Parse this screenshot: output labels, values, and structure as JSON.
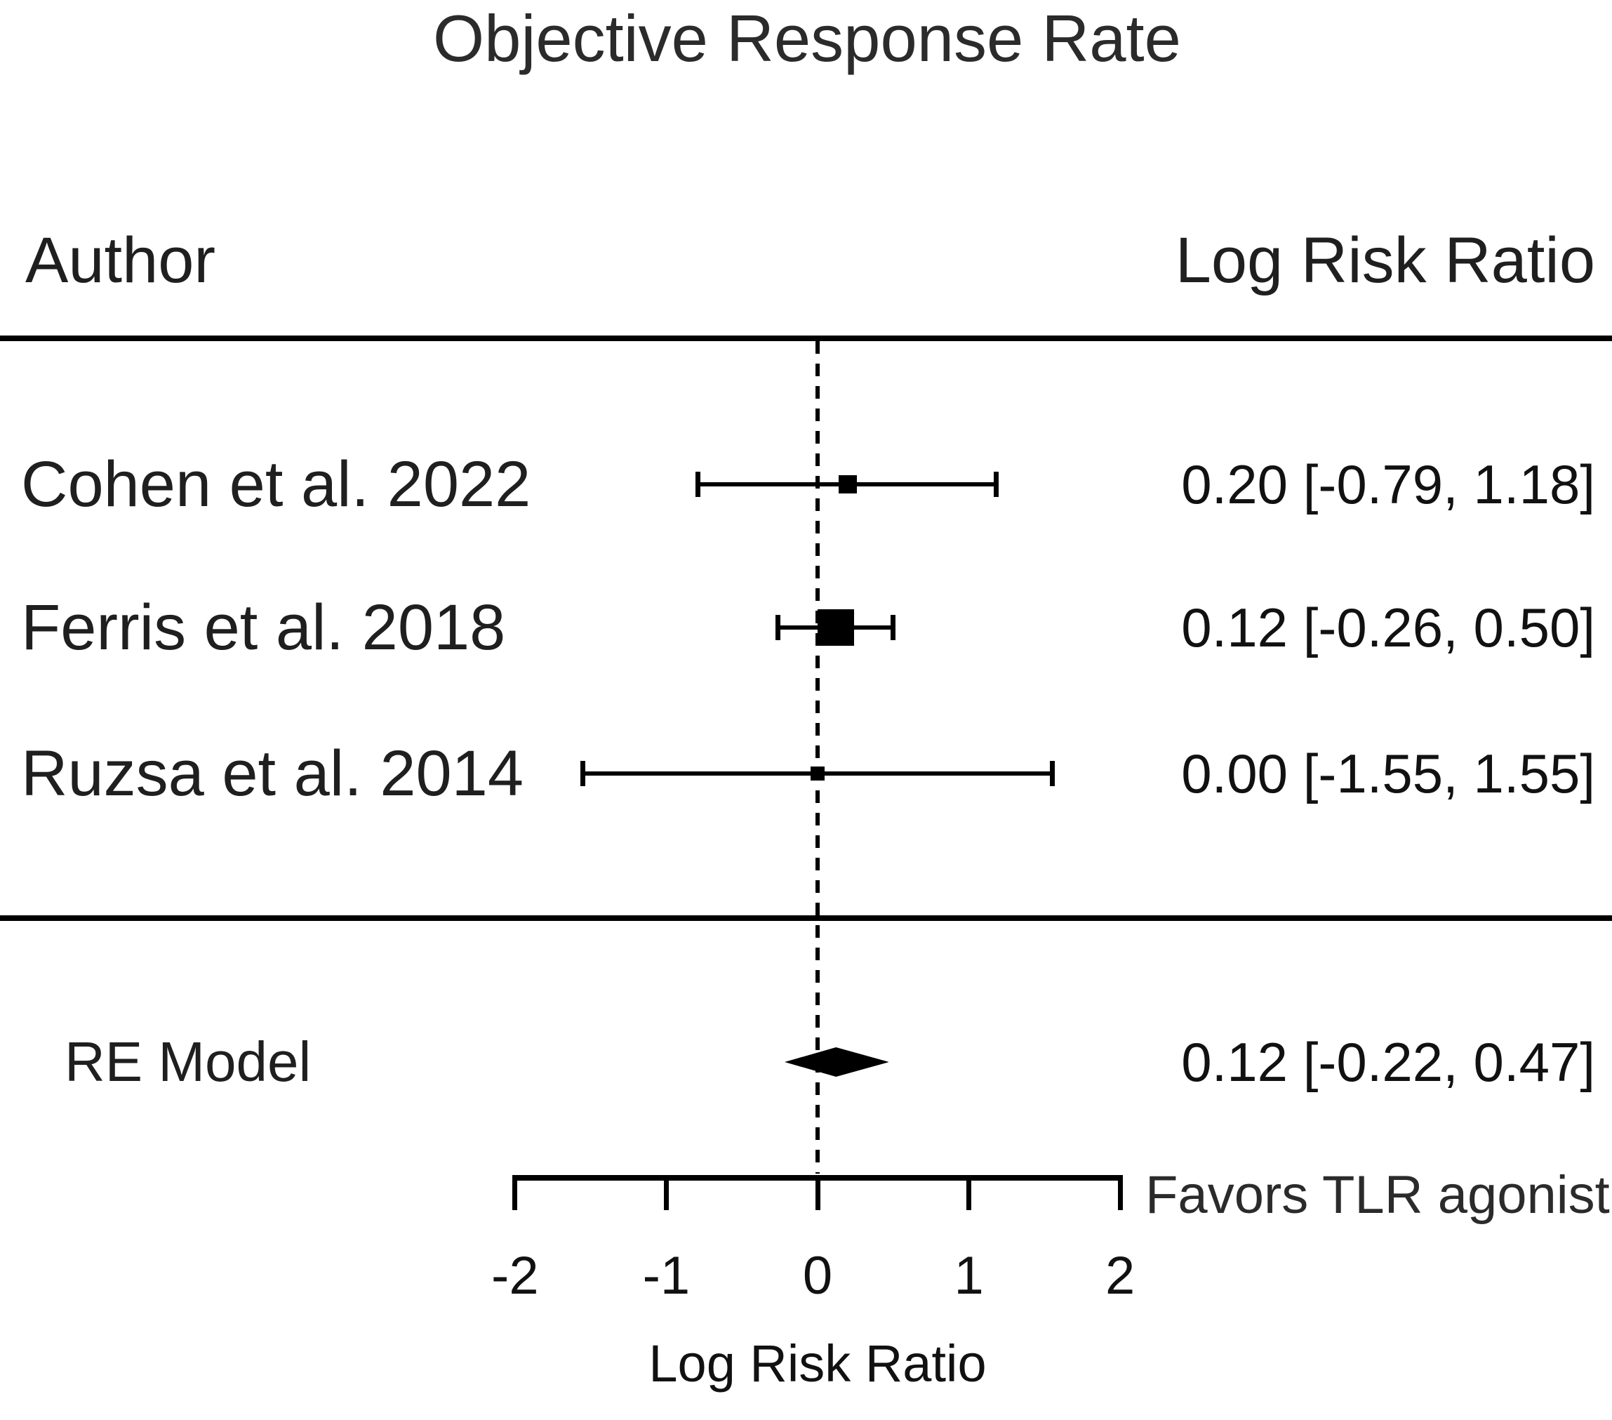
{
  "title": "Objective Response Rate",
  "columns": {
    "author": "Author",
    "effect": "Log Risk Ratio"
  },
  "chart_data": {
    "type": "forest",
    "effect_measure": "Log Risk Ratio",
    "studies": [
      {
        "author": "Cohen et al. 2022",
        "estimate": 0.2,
        "ci_lower": -0.79,
        "ci_upper": 1.18,
        "label": "0.20 [-0.79, 1.18]",
        "marker_px": 26
      },
      {
        "author": "Ferris et al. 2018",
        "estimate": 0.12,
        "ci_lower": -0.26,
        "ci_upper": 0.5,
        "label": "0.12 [-0.26, 0.50]",
        "marker_px": 52
      },
      {
        "author": "Ruzsa et al. 2014",
        "estimate": 0.0,
        "ci_lower": -1.55,
        "ci_upper": 1.55,
        "label": "0.00 [-1.55, 1.55]",
        "marker_px": 20
      }
    ],
    "summary": {
      "name": "RE Model",
      "estimate": 0.12,
      "ci_lower": -0.22,
      "ci_upper": 0.47,
      "label": "0.12 [-0.22, 0.47]"
    },
    "xticks": [
      "-2",
      "-1",
      "0",
      "1",
      "2"
    ],
    "xtick_values": [
      -2,
      -1,
      0,
      1,
      2
    ],
    "xlim": [
      -2,
      2
    ],
    "xlabel": "Log Risk Ratio",
    "annotation_right": "Favors TLR agonist",
    "reference_line_x": 0,
    "grid": false,
    "colors": {
      "marker": "#000000",
      "line": "#000000",
      "text": "#1f1f1f"
    }
  }
}
